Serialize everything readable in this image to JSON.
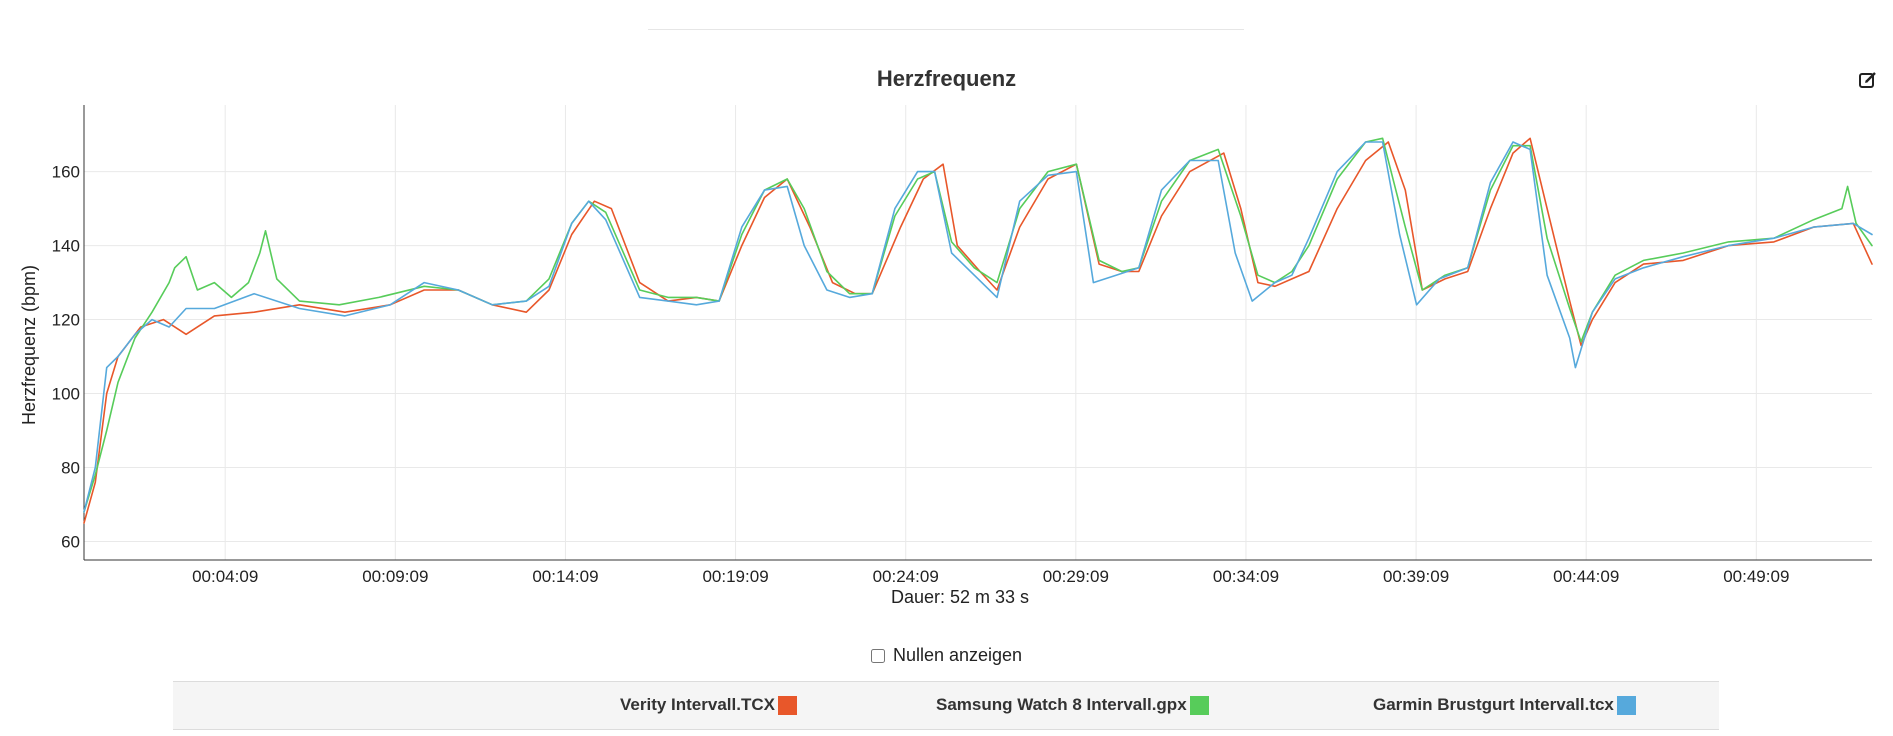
{
  "chart_data": {
    "type": "line",
    "title": "Herzfrequenz",
    "ylabel": "Herzfrequenz (bpm)",
    "xlabel": "Dauer: 52 m 33 s",
    "xlim_seconds": [
      0,
      3153
    ],
    "ylim": [
      55,
      178
    ],
    "y_ticks": [
      60,
      80,
      100,
      120,
      140,
      160
    ],
    "x_ticks": [
      {
        "seconds": 249,
        "label": "00:04:09"
      },
      {
        "seconds": 549,
        "label": "00:09:09"
      },
      {
        "seconds": 849,
        "label": "00:14:09"
      },
      {
        "seconds": 1149,
        "label": "00:19:09"
      },
      {
        "seconds": 1449,
        "label": "00:24:09"
      },
      {
        "seconds": 1749,
        "label": "00:29:09"
      },
      {
        "seconds": 2049,
        "label": "00:34:09"
      },
      {
        "seconds": 2349,
        "label": "00:39:09"
      },
      {
        "seconds": 2649,
        "label": "00:44:09"
      },
      {
        "seconds": 2949,
        "label": "00:49:09"
      }
    ],
    "grid": true,
    "series": [
      {
        "name": "Verity Intervall.TCX",
        "color": "#e8572a",
        "points": [
          [
            0,
            65
          ],
          [
            20,
            76
          ],
          [
            40,
            100
          ],
          [
            60,
            110
          ],
          [
            100,
            118
          ],
          [
            140,
            120
          ],
          [
            180,
            116
          ],
          [
            230,
            121
          ],
          [
            300,
            122
          ],
          [
            380,
            124
          ],
          [
            460,
            122
          ],
          [
            540,
            124
          ],
          [
            600,
            128
          ],
          [
            660,
            128
          ],
          [
            720,
            124
          ],
          [
            780,
            122
          ],
          [
            820,
            128
          ],
          [
            860,
            143
          ],
          [
            900,
            152
          ],
          [
            930,
            150
          ],
          [
            980,
            130
          ],
          [
            1030,
            125
          ],
          [
            1080,
            126
          ],
          [
            1120,
            125
          ],
          [
            1160,
            140
          ],
          [
            1200,
            153
          ],
          [
            1240,
            158
          ],
          [
            1280,
            145
          ],
          [
            1320,
            130
          ],
          [
            1360,
            127
          ],
          [
            1390,
            127
          ],
          [
            1440,
            145
          ],
          [
            1480,
            158
          ],
          [
            1515,
            162
          ],
          [
            1540,
            140
          ],
          [
            1580,
            133
          ],
          [
            1610,
            128
          ],
          [
            1650,
            145
          ],
          [
            1700,
            158
          ],
          [
            1750,
            162
          ],
          [
            1790,
            135
          ],
          [
            1830,
            133
          ],
          [
            1860,
            133
          ],
          [
            1900,
            148
          ],
          [
            1950,
            160
          ],
          [
            2010,
            165
          ],
          [
            2040,
            150
          ],
          [
            2070,
            130
          ],
          [
            2100,
            129
          ],
          [
            2130,
            131
          ],
          [
            2160,
            133
          ],
          [
            2210,
            150
          ],
          [
            2260,
            163
          ],
          [
            2300,
            168
          ],
          [
            2330,
            155
          ],
          [
            2360,
            128
          ],
          [
            2400,
            131
          ],
          [
            2440,
            133
          ],
          [
            2480,
            150
          ],
          [
            2520,
            165
          ],
          [
            2550,
            169
          ],
          [
            2580,
            150
          ],
          [
            2620,
            125
          ],
          [
            2640,
            113
          ],
          [
            2660,
            120
          ],
          [
            2700,
            130
          ],
          [
            2750,
            135
          ],
          [
            2820,
            136
          ],
          [
            2900,
            140
          ],
          [
            2980,
            141
          ],
          [
            3050,
            145
          ],
          [
            3120,
            146
          ],
          [
            3153,
            135
          ]
        ]
      },
      {
        "name": "Samsung Watch 8 Intervall.gpx",
        "color": "#57cc5a",
        "points": [
          [
            0,
            68
          ],
          [
            20,
            78
          ],
          [
            40,
            90
          ],
          [
            60,
            103
          ],
          [
            90,
            115
          ],
          [
            120,
            122
          ],
          [
            150,
            130
          ],
          [
            160,
            134
          ],
          [
            180,
            137
          ],
          [
            200,
            128
          ],
          [
            230,
            130
          ],
          [
            260,
            126
          ],
          [
            290,
            130
          ],
          [
            310,
            138
          ],
          [
            320,
            144
          ],
          [
            340,
            131
          ],
          [
            380,
            125
          ],
          [
            450,
            124
          ],
          [
            520,
            126
          ],
          [
            600,
            129
          ],
          [
            660,
            128
          ],
          [
            720,
            124
          ],
          [
            780,
            125
          ],
          [
            820,
            131
          ],
          [
            860,
            146
          ],
          [
            890,
            152
          ],
          [
            920,
            149
          ],
          [
            980,
            128
          ],
          [
            1030,
            126
          ],
          [
            1080,
            126
          ],
          [
            1120,
            125
          ],
          [
            1160,
            143
          ],
          [
            1200,
            155
          ],
          [
            1240,
            158
          ],
          [
            1270,
            150
          ],
          [
            1310,
            133
          ],
          [
            1350,
            127
          ],
          [
            1390,
            127
          ],
          [
            1430,
            148
          ],
          [
            1470,
            158
          ],
          [
            1500,
            160
          ],
          [
            1530,
            141
          ],
          [
            1570,
            134
          ],
          [
            1610,
            130
          ],
          [
            1650,
            150
          ],
          [
            1700,
            160
          ],
          [
            1750,
            162
          ],
          [
            1790,
            136
          ],
          [
            1830,
            133
          ],
          [
            1860,
            134
          ],
          [
            1900,
            152
          ],
          [
            1950,
            163
          ],
          [
            2000,
            166
          ],
          [
            2040,
            148
          ],
          [
            2070,
            132
          ],
          [
            2100,
            130
          ],
          [
            2130,
            133
          ],
          [
            2160,
            140
          ],
          [
            2210,
            158
          ],
          [
            2260,
            168
          ],
          [
            2290,
            169
          ],
          [
            2330,
            145
          ],
          [
            2360,
            128
          ],
          [
            2400,
            132
          ],
          [
            2440,
            134
          ],
          [
            2480,
            155
          ],
          [
            2520,
            167
          ],
          [
            2550,
            167
          ],
          [
            2580,
            142
          ],
          [
            2620,
            123
          ],
          [
            2640,
            114
          ],
          [
            2660,
            122
          ],
          [
            2700,
            132
          ],
          [
            2750,
            136
          ],
          [
            2820,
            138
          ],
          [
            2900,
            141
          ],
          [
            2980,
            142
          ],
          [
            3050,
            147
          ],
          [
            3100,
            150
          ],
          [
            3110,
            156
          ],
          [
            3125,
            146
          ],
          [
            3153,
            140
          ]
        ]
      },
      {
        "name": "Garmin Brustgurt Intervall.tcx",
        "color": "#56a9dc",
        "points": [
          [
            0,
            68
          ],
          [
            20,
            80
          ],
          [
            40,
            107
          ],
          [
            60,
            110
          ],
          [
            90,
            116
          ],
          [
            120,
            120
          ],
          [
            150,
            118
          ],
          [
            180,
            123
          ],
          [
            230,
            123
          ],
          [
            300,
            127
          ],
          [
            380,
            123
          ],
          [
            460,
            121
          ],
          [
            540,
            124
          ],
          [
            600,
            130
          ],
          [
            660,
            128
          ],
          [
            720,
            124
          ],
          [
            780,
            125
          ],
          [
            820,
            129
          ],
          [
            860,
            146
          ],
          [
            890,
            152
          ],
          [
            920,
            147
          ],
          [
            980,
            126
          ],
          [
            1030,
            125
          ],
          [
            1080,
            124
          ],
          [
            1120,
            125
          ],
          [
            1160,
            145
          ],
          [
            1200,
            155
          ],
          [
            1240,
            156
          ],
          [
            1270,
            140
          ],
          [
            1310,
            128
          ],
          [
            1350,
            126
          ],
          [
            1390,
            127
          ],
          [
            1430,
            150
          ],
          [
            1470,
            160
          ],
          [
            1500,
            160
          ],
          [
            1530,
            138
          ],
          [
            1570,
            132
          ],
          [
            1610,
            126
          ],
          [
            1650,
            152
          ],
          [
            1700,
            159
          ],
          [
            1750,
            160
          ],
          [
            1780,
            130
          ],
          [
            1820,
            132
          ],
          [
            1860,
            134
          ],
          [
            1900,
            155
          ],
          [
            1950,
            163
          ],
          [
            2000,
            163
          ],
          [
            2030,
            138
          ],
          [
            2060,
            125
          ],
          [
            2100,
            130
          ],
          [
            2130,
            132
          ],
          [
            2160,
            142
          ],
          [
            2210,
            160
          ],
          [
            2260,
            168
          ],
          [
            2290,
            168
          ],
          [
            2320,
            143
          ],
          [
            2350,
            124
          ],
          [
            2390,
            131
          ],
          [
            2440,
            134
          ],
          [
            2480,
            157
          ],
          [
            2520,
            168
          ],
          [
            2550,
            166
          ],
          [
            2580,
            132
          ],
          [
            2620,
            115
          ],
          [
            2630,
            107
          ],
          [
            2660,
            122
          ],
          [
            2700,
            131
          ],
          [
            2750,
            134
          ],
          [
            2820,
            137
          ],
          [
            2900,
            140
          ],
          [
            2980,
            142
          ],
          [
            3050,
            145
          ],
          [
            3120,
            146
          ],
          [
            3153,
            143
          ]
        ]
      }
    ]
  },
  "controls": {
    "show_zeros_label": "Nullen anzeigen",
    "show_zeros_checked": false
  },
  "legend": [
    {
      "label": "Verity Intervall.TCX",
      "color": "#e8572a"
    },
    {
      "label": "Samsung Watch 8 Intervall.gpx",
      "color": "#57cc5a"
    },
    {
      "label": "Garmin Brustgurt Intervall.tcx",
      "color": "#56a9dc"
    }
  ],
  "icons": {
    "edit": "edit-icon"
  }
}
